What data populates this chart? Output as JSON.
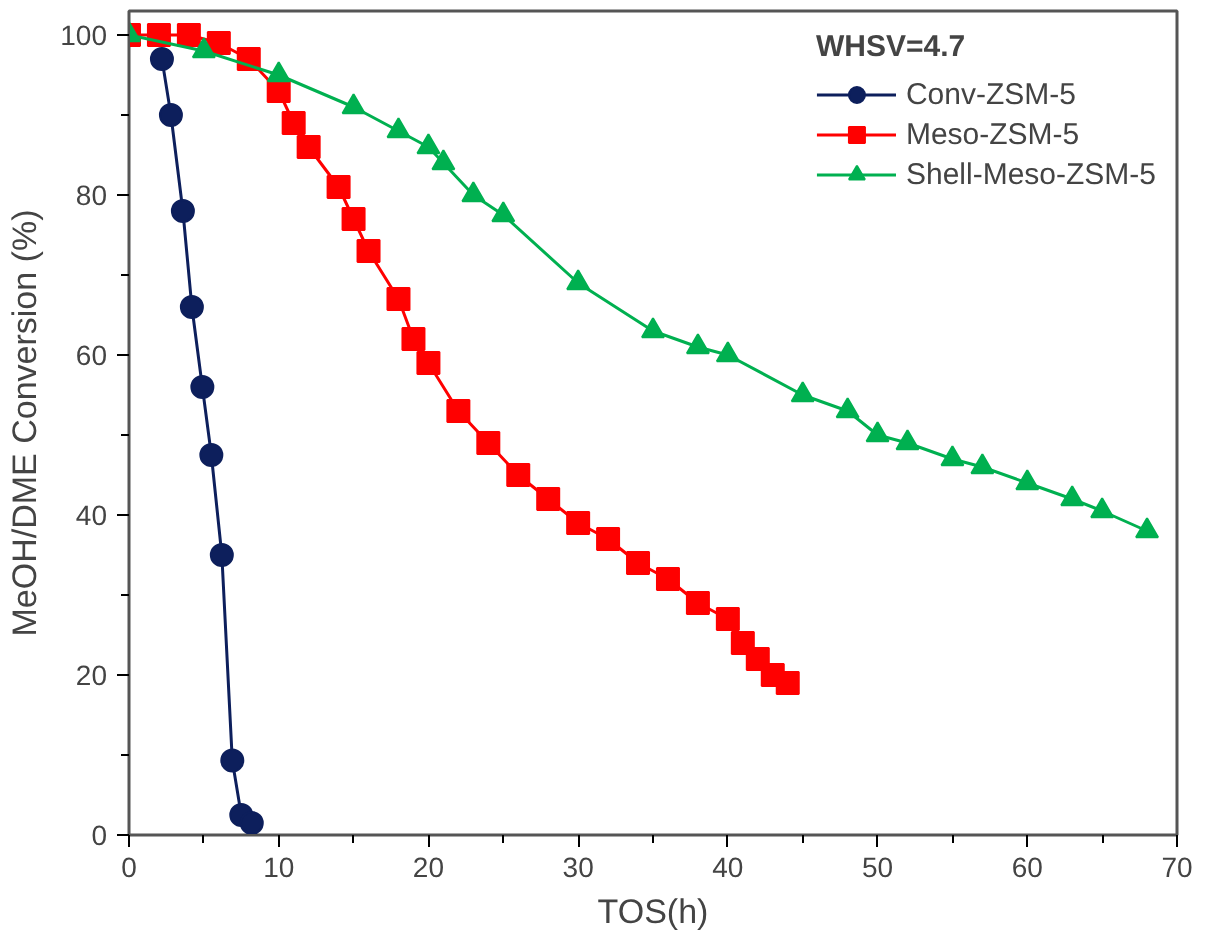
{
  "chart_data": {
    "type": "line",
    "xlabel": "TOS(h)",
    "ylabel": "MeOH/DME Conversion (%)",
    "legend_title": "WHSV=4.7",
    "legend": "top right",
    "grid": false,
    "xlim": [
      0,
      70
    ],
    "ylim": [
      0,
      103
    ],
    "xticks": [
      0,
      {
        "value": 5,
        "label": null
      },
      10,
      {
        "value": 15,
        "label": null
      },
      20,
      {
        "value": 25,
        "label": null
      },
      30,
      {
        "value": 35,
        "label": null
      },
      40,
      {
        "value": 45,
        "label": null
      },
      50,
      {
        "value": 55,
        "label": null
      },
      60,
      {
        "value": 65,
        "label": null
      },
      70
    ],
    "yticks": [
      0,
      {
        "value": 10,
        "label": null
      },
      20,
      {
        "value": 30,
        "label": null
      },
      40,
      {
        "value": 50,
        "label": null
      },
      60,
      {
        "value": 70,
        "label": null
      },
      80,
      {
        "value": 90,
        "label": null
      },
      100
    ],
    "series": [
      {
        "name": "Conv-ZSM-5",
        "color": "#0d1f5c",
        "marker": "circle",
        "x": [
          2.2,
          2.8,
          3.6,
          4.2,
          4.9,
          5.5,
          6.2,
          6.9,
          7.5,
          8.2
        ],
        "values": [
          97,
          90,
          78,
          66,
          56,
          47.5,
          35,
          9.3,
          2.5,
          1.5
        ]
      },
      {
        "name": "Meso-ZSM-5",
        "color": "#ff0000",
        "marker": "square",
        "x": [
          0,
          2,
          4,
          6,
          8,
          10,
          11,
          12,
          14,
          15,
          16,
          18,
          19,
          20,
          22,
          24,
          26,
          28,
          30,
          32,
          34,
          36,
          38,
          40,
          41,
          42,
          43,
          44
        ],
        "values": [
          100,
          100,
          100,
          99,
          97,
          93,
          89,
          86,
          81,
          77,
          73,
          67,
          62,
          59,
          53,
          49,
          45,
          42,
          39,
          37,
          34,
          32,
          29,
          27,
          24,
          22,
          20,
          19
        ]
      },
      {
        "name": "Shell-Meso-ZSM-5",
        "color": "#00b050",
        "marker": "triangle",
        "x": [
          0,
          5,
          10,
          15,
          18,
          20,
          21,
          23,
          25,
          30,
          35,
          38,
          40,
          45,
          48,
          50,
          52,
          55,
          57,
          60,
          63,
          65,
          68
        ],
        "values": [
          100,
          98,
          95,
          91,
          88,
          86,
          84,
          80,
          77.5,
          69,
          63,
          61,
          60,
          55,
          53,
          50,
          49,
          47,
          46,
          44,
          42,
          40.5,
          38
        ]
      }
    ]
  }
}
